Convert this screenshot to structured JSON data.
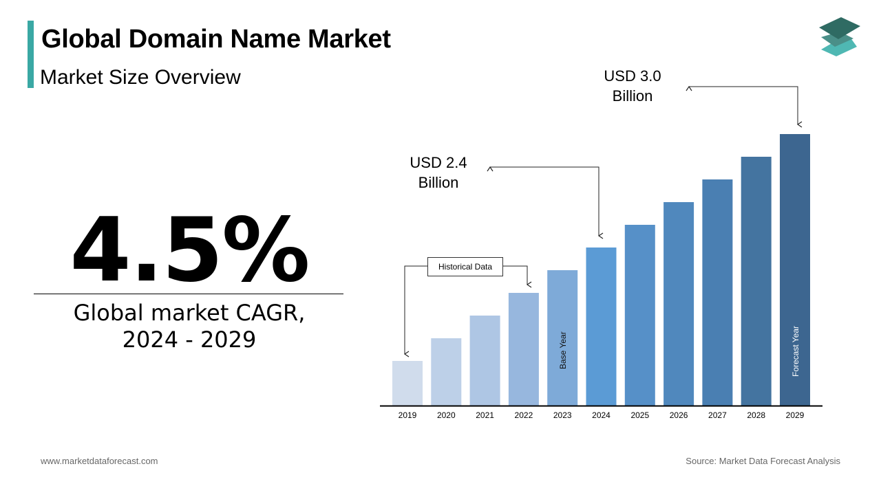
{
  "header": {
    "title": "Global Domain Name Market",
    "subtitle": "Market Size Overview"
  },
  "logo": {
    "icon": "stacked-layers-logo",
    "colors": [
      "#2f6b63",
      "#4a8f88",
      "#4fb8b3"
    ]
  },
  "kpi": {
    "value": "4.5%",
    "label_line1": "Global market CAGR,",
    "label_line2": "2024 - 2029"
  },
  "footer": {
    "website": "www.marketdataforecast.com",
    "source": "Source: Market Data Forecast Analysis"
  },
  "chart_data": {
    "type": "bar",
    "categories": [
      "2019",
      "2020",
      "2021",
      "2022",
      "2023",
      "2024",
      "2025",
      "2026",
      "2027",
      "2028",
      "2029"
    ],
    "relative_levels": [
      1,
      2,
      3,
      4,
      5,
      6,
      7,
      8,
      9,
      10,
      11
    ],
    "labeled_values": {
      "2024": 2.4,
      "2029": 3.0
    },
    "unit": "USD Billion",
    "colors": [
      "#d0dcec",
      "#bdd0e8",
      "#aec6e4",
      "#97b7de",
      "#7eaad8",
      "#5b9bd5",
      "#5690c8",
      "#5088bd",
      "#4a7fb2",
      "#4474a0",
      "#3d6690"
    ],
    "annotations": {
      "value_2024_line1": "USD 2.4",
      "value_2024_line2": "Billion",
      "value_2029_line1": "USD 3.0",
      "value_2029_line2": "Billion",
      "historical": "Historical Data",
      "base_year": "Base Year",
      "forecast_year": "Forecast Year"
    },
    "grid": false,
    "legend": "none"
  }
}
